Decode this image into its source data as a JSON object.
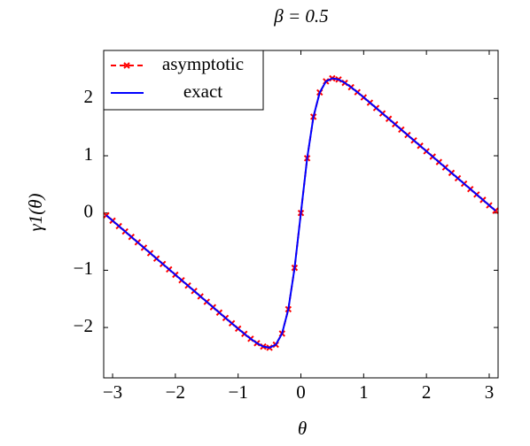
{
  "chart_data": {
    "type": "line",
    "title": "β = 0.5",
    "xlabel": "θ",
    "ylabel": "γ1(θ)",
    "x": [
      -3.1,
      -3.0,
      -2.9,
      -2.8,
      -2.7,
      -2.6,
      -2.5,
      -2.4,
      -2.3,
      -2.2,
      -2.1,
      -2.0,
      -1.9,
      -1.8,
      -1.7,
      -1.6,
      -1.5,
      -1.4,
      -1.3,
      -1.2,
      -1.1,
      -1.0,
      -0.9,
      -0.8,
      -0.7,
      -0.6,
      -0.5,
      -0.4,
      -0.3,
      -0.2,
      -0.1,
      0,
      0.1,
      0.2,
      0.3,
      0.4,
      0.5,
      0.6,
      0.7,
      0.8,
      0.9,
      1.0,
      1.1,
      1.2,
      1.3,
      1.4,
      1.5,
      1.6,
      1.7,
      1.8,
      1.9,
      2.0,
      2.1,
      2.2,
      2.3,
      2.4,
      2.5,
      2.6,
      2.7,
      2.8,
      2.9,
      3.0,
      3.1
    ],
    "series": [
      {
        "name": "asymptotic",
        "color": "#ff0000",
        "style": "dashed-markers",
        "values": [
          -0.04,
          -0.134,
          -0.229,
          -0.323,
          -0.418,
          -0.512,
          -0.607,
          -0.701,
          -0.796,
          -0.89,
          -0.985,
          -1.079,
          -1.174,
          -1.268,
          -1.362,
          -1.457,
          -1.551,
          -1.646,
          -1.74,
          -1.834,
          -1.927,
          -2.02,
          -2.111,
          -2.197,
          -2.274,
          -2.333,
          -2.353,
          -2.3,
          -2.106,
          -1.681,
          -0.957,
          0,
          0.957,
          1.681,
          2.106,
          2.3,
          2.353,
          2.333,
          2.274,
          2.197,
          2.111,
          2.02,
          1.927,
          1.834,
          1.74,
          1.646,
          1.551,
          1.457,
          1.362,
          1.268,
          1.174,
          1.079,
          0.985,
          0.89,
          0.796,
          0.701,
          0.607,
          0.512,
          0.418,
          0.323,
          0.229,
          0.134,
          0.04
        ]
      },
      {
        "name": "exact",
        "color": "#0000ff",
        "style": "solid",
        "values": [
          -0.04,
          -0.134,
          -0.229,
          -0.323,
          -0.418,
          -0.512,
          -0.607,
          -0.701,
          -0.796,
          -0.89,
          -0.985,
          -1.079,
          -1.174,
          -1.268,
          -1.362,
          -1.457,
          -1.551,
          -1.646,
          -1.74,
          -1.834,
          -1.927,
          -2.02,
          -2.111,
          -2.197,
          -2.274,
          -2.333,
          -2.353,
          -2.3,
          -2.106,
          -1.681,
          -0.957,
          0,
          0.957,
          1.681,
          2.106,
          2.3,
          2.353,
          2.333,
          2.274,
          2.197,
          2.111,
          2.02,
          1.927,
          1.834,
          1.74,
          1.646,
          1.551,
          1.457,
          1.362,
          1.268,
          1.174,
          1.079,
          0.985,
          0.89,
          0.796,
          0.701,
          0.607,
          0.512,
          0.418,
          0.323,
          0.229,
          0.134,
          0.04
        ]
      }
    ],
    "xlim": [
      -3.1416,
      3.1416
    ],
    "ylim": [
      -2.88,
      2.84
    ],
    "xticks": [
      {
        "value": -3,
        "label": "−3"
      },
      {
        "value": -2,
        "label": "−2"
      },
      {
        "value": -1,
        "label": "−1"
      },
      0,
      1,
      2,
      3
    ],
    "yticks": [
      {
        "value": -2,
        "label": "−2"
      },
      {
        "value": -1,
        "label": "−1"
      },
      0,
      1,
      2
    ],
    "legend": "upper left",
    "grid": false
  }
}
